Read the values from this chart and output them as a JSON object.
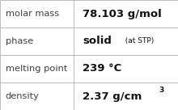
{
  "rows": [
    {
      "label": "molar mass",
      "value_main": "78.103 g/mol",
      "value_main_bold": true,
      "value_main_size": 9.5,
      "value_suffix": "",
      "value_suffix_bold": false,
      "value_suffix_size": 6.5,
      "value_super": "",
      "value_super_size": 6.5
    },
    {
      "label": "phase",
      "value_main": "solid",
      "value_main_bold": true,
      "value_main_size": 9.5,
      "value_suffix": "  (at STP)",
      "value_suffix_bold": false,
      "value_suffix_size": 6.5,
      "value_super": "",
      "value_super_size": 6.5
    },
    {
      "label": "melting point",
      "value_main": "239 °C",
      "value_main_bold": true,
      "value_main_size": 9.5,
      "value_suffix": "",
      "value_suffix_bold": false,
      "value_suffix_size": 6.5,
      "value_super": "",
      "value_super_size": 6.5
    },
    {
      "label": "density",
      "value_main": "2.37 g/cm",
      "value_main_bold": true,
      "value_main_size": 9.5,
      "value_suffix": "",
      "value_suffix_bold": false,
      "value_suffix_size": 6.5,
      "value_super": "3",
      "value_super_size": 6.5
    }
  ],
  "col_split": 0.415,
  "background_color": "#ffffff",
  "border_color": "#bbbbbb",
  "label_color": "#404040",
  "value_color": "#111111",
  "label_fontsize": 8.2,
  "figsize": [
    2.2,
    1.36
  ],
  "dpi": 100
}
